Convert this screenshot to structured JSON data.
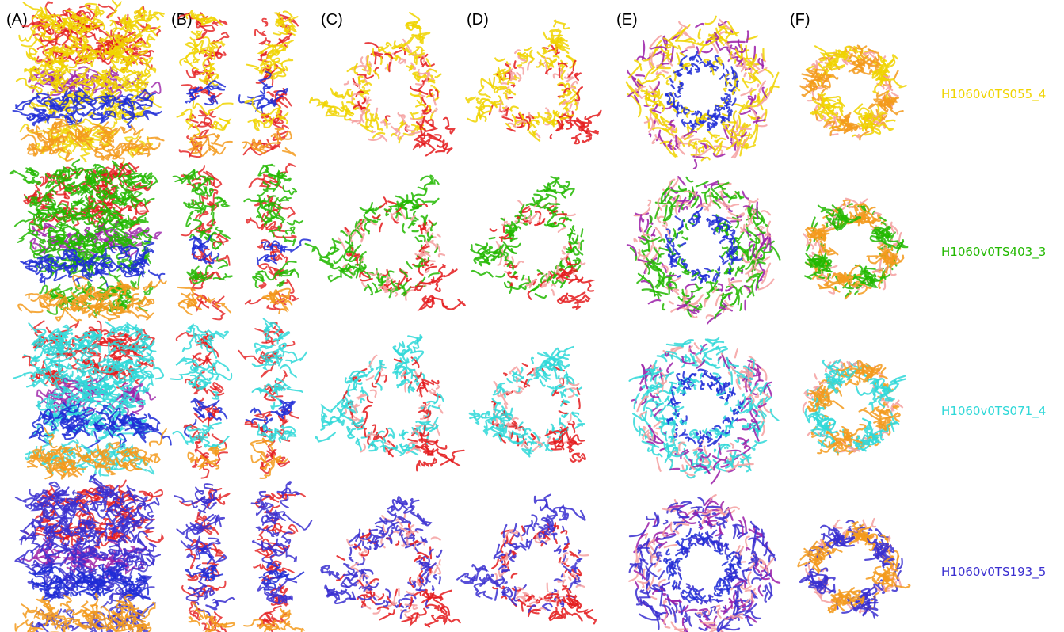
{
  "panels": [
    "(A)",
    "(B)",
    "(C)",
    "(D)",
    "(E)",
    "(F)"
  ],
  "models": [
    {
      "name": "H1060v0TS055_4",
      "color": "#f0d400"
    },
    {
      "name": "H1060v0TS403_3",
      "color": "#22b800"
    },
    {
      "name": "H1060v0TS071_4",
      "color": "#2fd8d8"
    },
    {
      "name": "H1060v0TS193_5",
      "color": "#3a2fd0"
    }
  ],
  "palette": {
    "reference": "#e41a1c",
    "reference_light": "#f4a0a0",
    "chain_b": "#1f2bd6",
    "chain_c": "#9b1fa8",
    "chain_d": "#f39a1c"
  }
}
